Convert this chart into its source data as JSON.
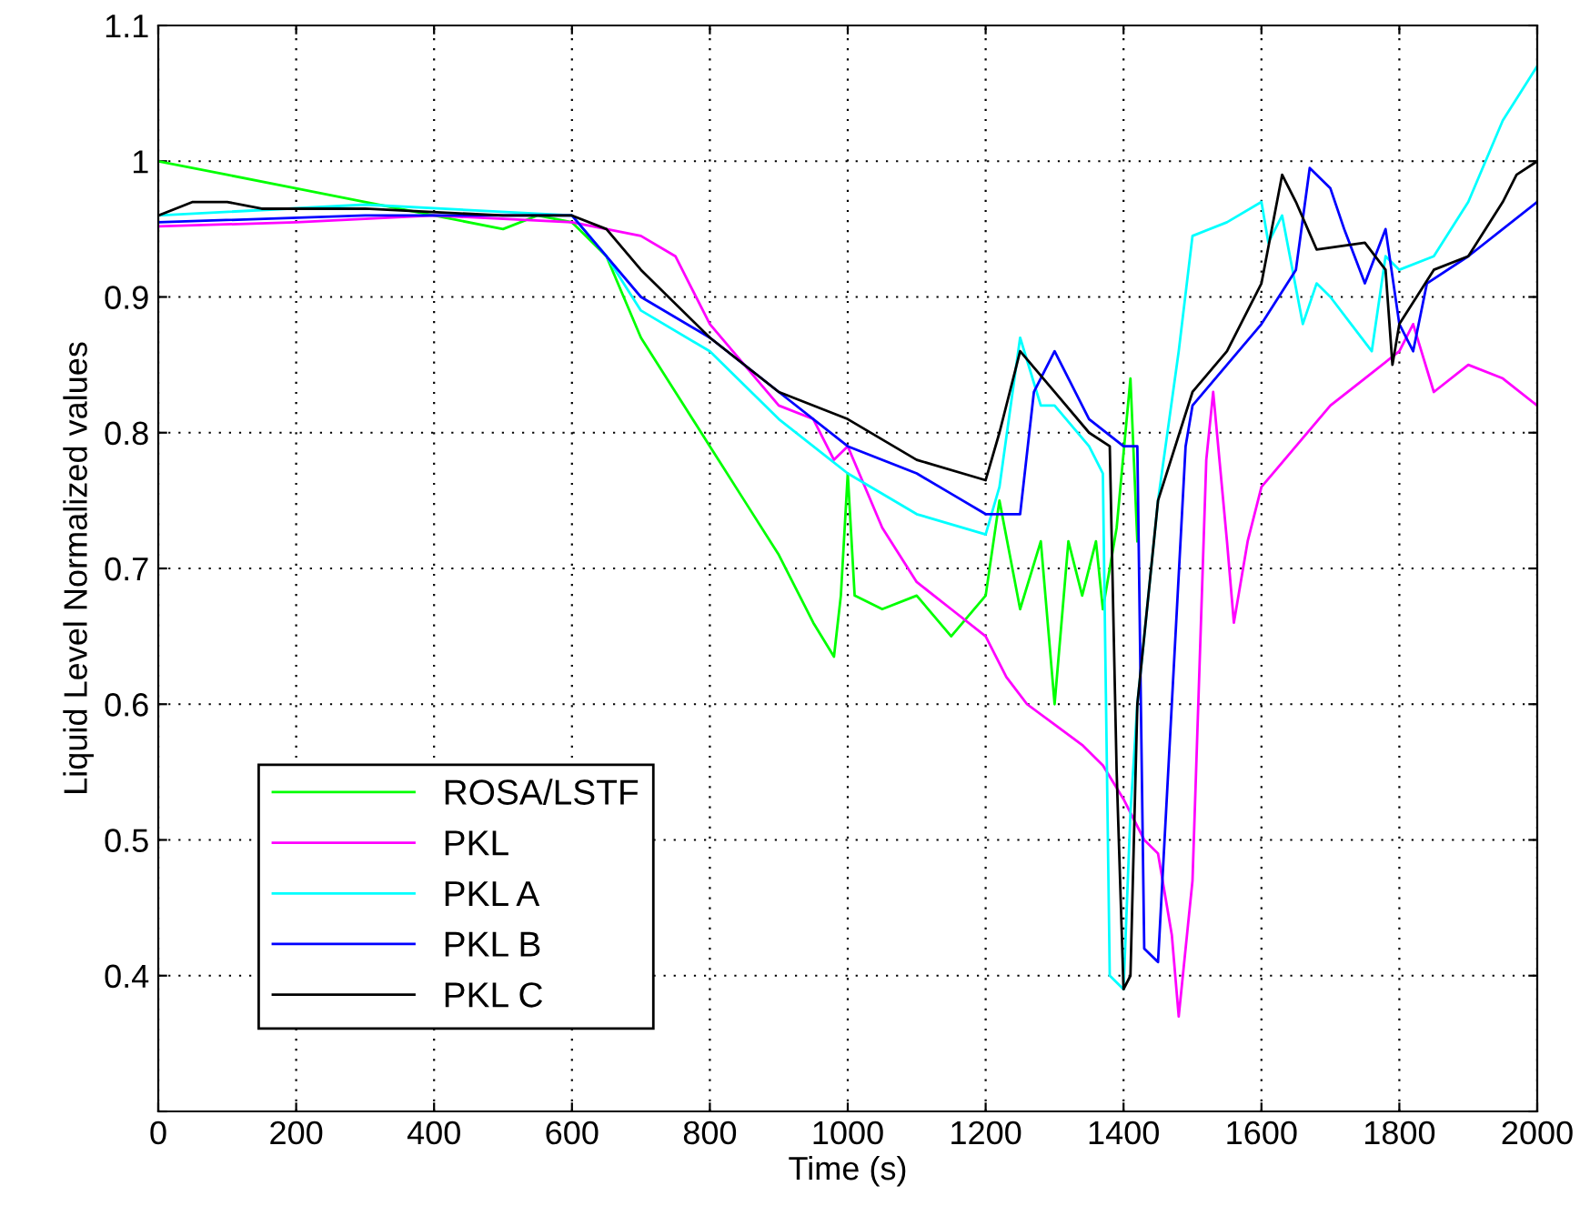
{
  "chart_data": {
    "type": "line",
    "xlabel": "Time (s)",
    "ylabel": "Liquid Level Normalized values",
    "xlim": [
      0,
      2000
    ],
    "xticks": [
      0,
      200,
      400,
      600,
      800,
      1000,
      1200,
      1400,
      1600,
      1800,
      2000
    ],
    "ylim": [
      0.3,
      1.1
    ],
    "yticks": [
      {
        "value": 0.3,
        "label": null
      },
      0.4,
      0.5,
      0.6,
      0.7,
      0.8,
      0.9,
      1,
      1.1
    ],
    "grid": true,
    "legend": "bottom left",
    "line_style": "solid",
    "series": [
      {
        "name": "ROSA/LSTF",
        "color": "#00ff00",
        "x": [
          0,
          100,
          200,
          300,
          400,
          500,
          550,
          600,
          650,
          700,
          750,
          800,
          850,
          900,
          950,
          980,
          990,
          1000,
          1010,
          1050,
          1100,
          1150,
          1200,
          1220,
          1250,
          1280,
          1300,
          1320,
          1340,
          1360,
          1370,
          1390,
          1410,
          1420
        ],
        "values": [
          1.0,
          0.99,
          0.98,
          0.97,
          0.96,
          0.95,
          0.96,
          0.955,
          0.93,
          0.87,
          0.83,
          0.79,
          0.75,
          0.71,
          0.66,
          0.635,
          0.68,
          0.77,
          0.68,
          0.67,
          0.68,
          0.65,
          0.68,
          0.75,
          0.67,
          0.72,
          0.6,
          0.72,
          0.68,
          0.72,
          0.67,
          0.73,
          0.84,
          0.72
        ]
      },
      {
        "name": "PKL",
        "color": "#ff00ff",
        "x": [
          0,
          200,
          400,
          600,
          700,
          750,
          800,
          850,
          900,
          950,
          980,
          1000,
          1050,
          1100,
          1150,
          1200,
          1230,
          1260,
          1300,
          1340,
          1370,
          1400,
          1430,
          1450,
          1470,
          1480,
          1500,
          1520,
          1530,
          1550,
          1560,
          1580,
          1600,
          1650,
          1700,
          1750,
          1800,
          1820,
          1850,
          1900,
          1950,
          2000
        ],
        "values": [
          0.952,
          0.955,
          0.96,
          0.955,
          0.945,
          0.93,
          0.88,
          0.85,
          0.82,
          0.81,
          0.78,
          0.79,
          0.73,
          0.69,
          0.67,
          0.65,
          0.62,
          0.6,
          0.585,
          0.57,
          0.555,
          0.53,
          0.5,
          0.49,
          0.43,
          0.37,
          0.47,
          0.78,
          0.83,
          0.72,
          0.66,
          0.72,
          0.76,
          0.79,
          0.82,
          0.84,
          0.86,
          0.88,
          0.83,
          0.85,
          0.84,
          0.82
        ]
      },
      {
        "name": "PKL A",
        "color": "#00ffff",
        "x": [
          0,
          300,
          600,
          650,
          700,
          800,
          900,
          1000,
          1100,
          1200,
          1220,
          1250,
          1280,
          1300,
          1350,
          1370,
          1380,
          1400,
          1410,
          1420,
          1450,
          1480,
          1500,
          1550,
          1600,
          1610,
          1630,
          1660,
          1680,
          1700,
          1730,
          1760,
          1780,
          1800,
          1850,
          1900,
          1950,
          2000
        ],
        "values": [
          0.96,
          0.968,
          0.96,
          0.93,
          0.89,
          0.86,
          0.81,
          0.77,
          0.74,
          0.725,
          0.76,
          0.87,
          0.82,
          0.82,
          0.79,
          0.77,
          0.4,
          0.39,
          0.52,
          0.6,
          0.75,
          0.86,
          0.945,
          0.955,
          0.97,
          0.94,
          0.96,
          0.88,
          0.91,
          0.9,
          0.88,
          0.86,
          0.93,
          0.92,
          0.93,
          0.97,
          1.03,
          1.07
        ]
      },
      {
        "name": "PKL B",
        "color": "#0000ff",
        "x": [
          0,
          300,
          600,
          700,
          800,
          900,
          1000,
          1100,
          1150,
          1200,
          1250,
          1270,
          1300,
          1350,
          1400,
          1420,
          1430,
          1450,
          1470,
          1490,
          1500,
          1550,
          1600,
          1650,
          1670,
          1700,
          1720,
          1750,
          1780,
          1800,
          1820,
          1840,
          1900,
          2000
        ],
        "values": [
          0.955,
          0.96,
          0.96,
          0.9,
          0.87,
          0.83,
          0.79,
          0.77,
          0.755,
          0.74,
          0.74,
          0.83,
          0.86,
          0.81,
          0.79,
          0.79,
          0.42,
          0.41,
          0.6,
          0.79,
          0.82,
          0.85,
          0.88,
          0.92,
          0.995,
          0.98,
          0.95,
          0.91,
          0.95,
          0.88,
          0.86,
          0.91,
          0.93,
          0.97
        ]
      },
      {
        "name": "PKL C",
        "color": "#000000",
        "x": [
          0,
          50,
          100,
          150,
          300,
          500,
          600,
          650,
          700,
          800,
          900,
          1000,
          1100,
          1200,
          1220,
          1250,
          1300,
          1350,
          1380,
          1390,
          1400,
          1410,
          1420,
          1450,
          1500,
          1550,
          1600,
          1630,
          1650,
          1680,
          1750,
          1780,
          1790,
          1800,
          1850,
          1900,
          1950,
          1970,
          2000
        ],
        "values": [
          0.96,
          0.97,
          0.97,
          0.965,
          0.965,
          0.96,
          0.96,
          0.95,
          0.92,
          0.87,
          0.83,
          0.81,
          0.78,
          0.765,
          0.8,
          0.86,
          0.83,
          0.8,
          0.79,
          0.55,
          0.39,
          0.4,
          0.6,
          0.75,
          0.83,
          0.86,
          0.91,
          0.99,
          0.97,
          0.935,
          0.94,
          0.92,
          0.85,
          0.88,
          0.92,
          0.93,
          0.97,
          0.99,
          1.0
        ]
      }
    ]
  }
}
